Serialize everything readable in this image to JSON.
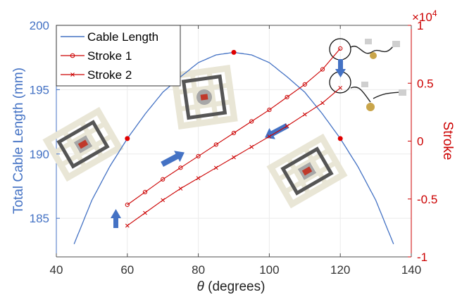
{
  "chart_data": {
    "type": "line",
    "xlabel_symbol": "θ",
    "xlabel_rest": " (degrees)",
    "ylabel_left": "Total Cable Length (mm)",
    "ylabel_right": "Stroke",
    "right_exponent_base": "×10",
    "right_exponent_power": "4",
    "xlim": [
      40,
      140
    ],
    "ylim_left": [
      182,
      200
    ],
    "ylim_right": [
      -1,
      1
    ],
    "x_ticks": [
      "40",
      "60",
      "80",
      "100",
      "120",
      "140"
    ],
    "y_left_ticks": [
      "185",
      "190",
      "195",
      "200"
    ],
    "y_right_ticks": [
      "-1",
      "-0.5",
      "0",
      "0.5",
      "1"
    ],
    "grid": true,
    "legend_position": "top-left",
    "colors": {
      "cable": "#4472c4",
      "stroke": "#cc0000",
      "left_axis": "#4472c4",
      "right_axis": "#cc0000",
      "arrow": "#4472c4"
    },
    "series": [
      {
        "name": "Cable Length",
        "axis": "left",
        "marker": "none",
        "x": [
          45,
          50,
          55,
          60,
          65,
          70,
          75,
          80,
          85,
          90,
          95,
          100,
          105,
          110,
          115,
          120,
          125,
          130,
          135
        ],
        "y": [
          183.0,
          186.4,
          189.0,
          191.2,
          193.1,
          194.8,
          196.0,
          197.1,
          197.7,
          197.9,
          197.7,
          197.1,
          196.0,
          194.8,
          193.1,
          191.2,
          189.0,
          186.4,
          183.0
        ]
      },
      {
        "name": "Stroke 1",
        "axis": "right",
        "marker": "circle",
        "x": [
          60,
          65,
          70,
          75,
          80,
          85,
          90,
          95,
          100,
          105,
          110,
          115,
          120
        ],
        "y": [
          -0.55,
          -0.44,
          -0.33,
          -0.23,
          -0.13,
          -0.03,
          0.07,
          0.17,
          0.27,
          0.38,
          0.49,
          0.62,
          0.8
        ]
      },
      {
        "name": "Stroke 2",
        "axis": "right",
        "marker": "x",
        "x": [
          60,
          65,
          70,
          75,
          80,
          85,
          90,
          95,
          100,
          105,
          110,
          115,
          120
        ],
        "y": [
          -0.73,
          -0.62,
          -0.51,
          -0.41,
          -0.32,
          -0.23,
          -0.14,
          -0.05,
          0.04,
          0.13,
          0.23,
          0.33,
          0.46
        ]
      }
    ],
    "highlight_points": [
      {
        "axis": "left",
        "x": 60,
        "y": 191.2
      },
      {
        "axis": "left",
        "x": 90,
        "y": 197.9
      },
      {
        "axis": "left",
        "x": 120,
        "y": 191.2
      }
    ]
  }
}
